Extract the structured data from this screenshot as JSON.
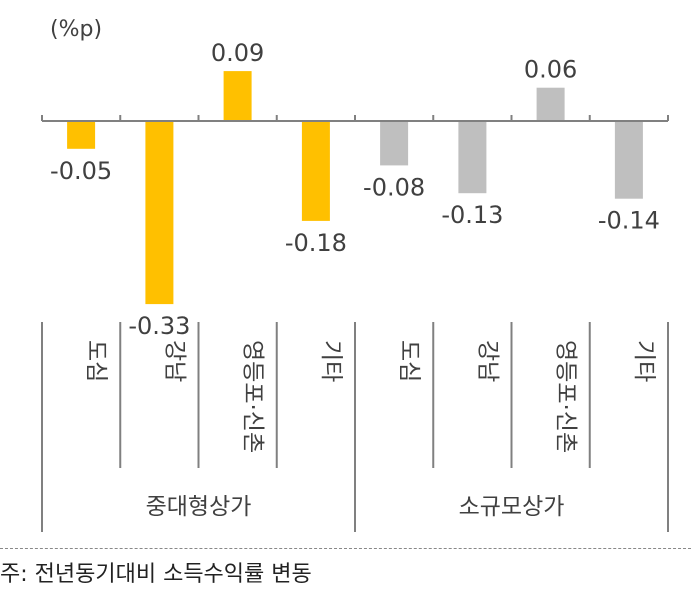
{
  "chart_data": {
    "type": "bar",
    "unit_label": "(%p)",
    "ylim": [
      -0.36,
      0.11
    ],
    "categories": [
      "도심",
      "강남",
      "영등포·신촌",
      "기타",
      "도심",
      "강남",
      "영등포·신촌",
      "기타"
    ],
    "values": [
      -0.05,
      -0.33,
      0.09,
      -0.18,
      -0.08,
      -0.13,
      0.06,
      -0.14
    ],
    "value_labels": [
      "-0.05",
      "-0.33",
      "0.09",
      "-0.18",
      "-0.08",
      "-0.13",
      "0.06",
      "-0.14"
    ],
    "groups": [
      {
        "name": "중대형상가",
        "categories": [
          "도심",
          "강남",
          "영등포·신촌",
          "기타"
        ],
        "color": "#FFC000"
      },
      {
        "name": "소규모상가",
        "categories": [
          "도심",
          "강남",
          "영등포·신촌",
          "기타"
        ],
        "color": "#BFBFBF"
      }
    ],
    "grid": false,
    "legend": "none"
  },
  "note": "주: 전년동기대비 소득수익률 변동"
}
